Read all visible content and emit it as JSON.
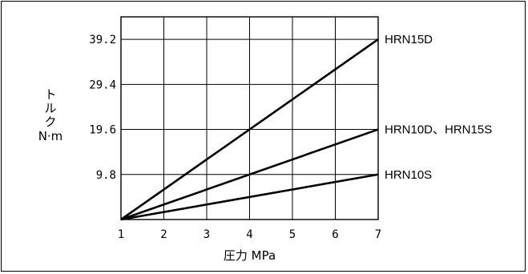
{
  "chart_data": {
    "type": "line",
    "xlabel": "圧力 MPa",
    "ylabel_lines": [
      "ト",
      "ル",
      "ク",
      "N·m"
    ],
    "xlim": [
      1,
      7
    ],
    "ylim": [
      0,
      44.1
    ],
    "x_ticks": [
      1,
      2,
      3,
      4,
      5,
      6,
      7
    ],
    "x_tick_labels": [
      "1",
      "2",
      "3",
      "4",
      "5",
      "6",
      "7"
    ],
    "y_ticks": [
      9.8,
      19.6,
      29.4,
      39.2
    ],
    "y_tick_labels": [
      "9.8",
      "19.6",
      "29.4",
      "39.2"
    ],
    "grid": true,
    "series": [
      {
        "name": "HRN15D",
        "x": [
          1,
          7
        ],
        "y": [
          0,
          39.2
        ]
      },
      {
        "name": "HRN10D、HRN15S",
        "x": [
          1,
          7
        ],
        "y": [
          0,
          19.6
        ]
      },
      {
        "name": "HRN10S",
        "x": [
          1,
          7
        ],
        "y": [
          0,
          9.8
        ]
      }
    ]
  }
}
